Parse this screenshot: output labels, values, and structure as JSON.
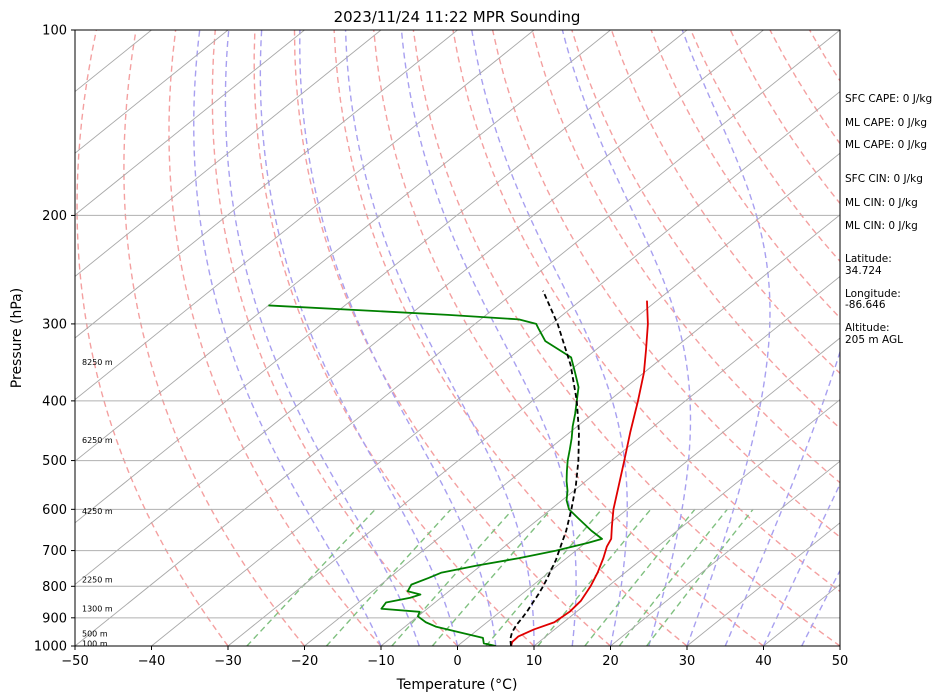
{
  "chart_data": {
    "type": "line",
    "title": "2023/11/24 11:22 MPR Sounding",
    "xlabel": "Temperature (°C)",
    "ylabel": "Pressure (hPa)",
    "xlim": [
      -50,
      50
    ],
    "ylim": [
      1000,
      100
    ],
    "yscale": "log",
    "grid": true,
    "xticks": [
      "−50",
      "−40",
      "−30",
      "−20",
      "−10",
      "0",
      "10",
      "20",
      "30",
      "40",
      "50"
    ],
    "yticks": [
      "100",
      "200",
      "300",
      "400",
      "500",
      "600",
      "700",
      "800",
      "900",
      "1000"
    ],
    "series": [
      {
        "color": "#e00000",
        "pressure": [
          1000,
          985,
          965,
          940,
          915,
          880,
          845,
          800,
          760,
          720,
          690,
          670,
          640,
          600,
          550,
          500,
          450,
          400,
          360,
          330,
          300,
          275
        ],
        "temperature": [
          7,
          6.5,
          6.4,
          7.3,
          8.8,
          9.1,
          8.8,
          7.7,
          6.4,
          4.8,
          3.4,
          2.7,
          0.8,
          -1.8,
          -4.9,
          -8.3,
          -12.1,
          -16.2,
          -20,
          -23.5,
          -27.4,
          -31.3
        ]
      },
      {
        "color": "#008000",
        "pressure": [
          1000,
          990,
          970,
          950,
          930,
          915,
          895,
          880,
          870,
          860,
          850,
          835,
          825,
          815,
          795,
          775,
          760,
          740,
          720,
          700,
          680,
          670,
          650,
          620,
          600,
          580,
          560,
          540,
          520,
          500,
          480,
          460,
          440,
          420,
          400,
          380,
          360,
          340,
          320,
          305,
          300,
          295,
          290,
          280
        ],
        "dewpoint": [
          5,
          3,
          2,
          -2,
          -6,
          -8,
          -10,
          -10.5,
          -16,
          -16.2,
          -16.4,
          -14,
          -13.2,
          -15.4,
          -16,
          -14.8,
          -14,
          -10.5,
          -6.2,
          -2.6,
          0.3,
          1.5,
          -1.2,
          -5,
          -7.6,
          -9.4,
          -10.8,
          -12.5,
          -14.1,
          -15.7,
          -17.2,
          -18.8,
          -20.6,
          -22.3,
          -24.2,
          -26.2,
          -29,
          -32,
          -38,
          -41,
          -42,
          -45,
          -55,
          -80
        ]
      },
      {
        "color": "#000000",
        "dash": true,
        "pressure": [
          1000,
          975,
          950,
          925,
          900,
          875,
          850,
          825,
          800,
          775,
          750,
          725,
          700,
          650,
          600,
          550,
          500,
          450,
          400,
          350,
          300,
          265
        ],
        "temperature": [
          7,
          5.8,
          4.9,
          4.3,
          3.9,
          3.4,
          2.8,
          2.2,
          1.5,
          0.7,
          -0.2,
          -1.1,
          -2.2,
          -4.5,
          -7.3,
          -10.5,
          -14.3,
          -18.8,
          -24.2,
          -30.8,
          -39.2,
          -46.5
        ]
      }
    ],
    "height_labels": [
      {
        "text": "100 m",
        "p": 990
      },
      {
        "text": "500 m",
        "p": 955
      },
      {
        "text": "1300 m",
        "p": 870
      },
      {
        "text": "2250 m",
        "p": 780
      },
      {
        "text": "4250 m",
        "p": 604
      },
      {
        "text": "6250 m",
        "p": 463
      },
      {
        "text": "8250 m",
        "p": 346
      }
    ],
    "isotherm_start": -180,
    "isotherm_end": 50,
    "isotherm_step": 10,
    "dry_adiabat_thetas": [
      -30,
      -20,
      -10,
      0,
      10,
      20,
      30,
      40,
      50,
      60,
      70,
      80,
      90,
      100,
      110,
      120,
      130,
      140,
      150,
      160,
      170,
      180
    ],
    "moist_adiabat_starts": [
      -10,
      -5,
      0,
      5,
      10,
      15,
      20,
      25,
      30,
      35,
      40,
      45
    ],
    "mixing_ratios": [
      0.4,
      1,
      2,
      3,
      5,
      8,
      12,
      16,
      20
    ],
    "colors": {
      "grid": "#b0b0b0",
      "isotherm": "#a8a8a8",
      "dry_adiabat": "#f4a0a0",
      "moist_adiabat": "#a8a0f0",
      "mixing_ratio": "#80c080"
    }
  },
  "stats": [
    "SFC CAPE: 0 J/kg",
    "ML CAPE: 0 J/kg",
    "ML CAPE: 0 J/kg",
    "SFC CIN: 0 J/kg",
    "ML CIN: 0 J/kg",
    "ML CIN: 0 J/kg"
  ],
  "location": {
    "latitude_label": "Latitude:",
    "latitude_value": "34.724",
    "longitude_label": "Longitude:",
    "longitude_value": "-86.646",
    "altitude_label": "Altitude:",
    "altitude_value": "205 m AGL"
  }
}
